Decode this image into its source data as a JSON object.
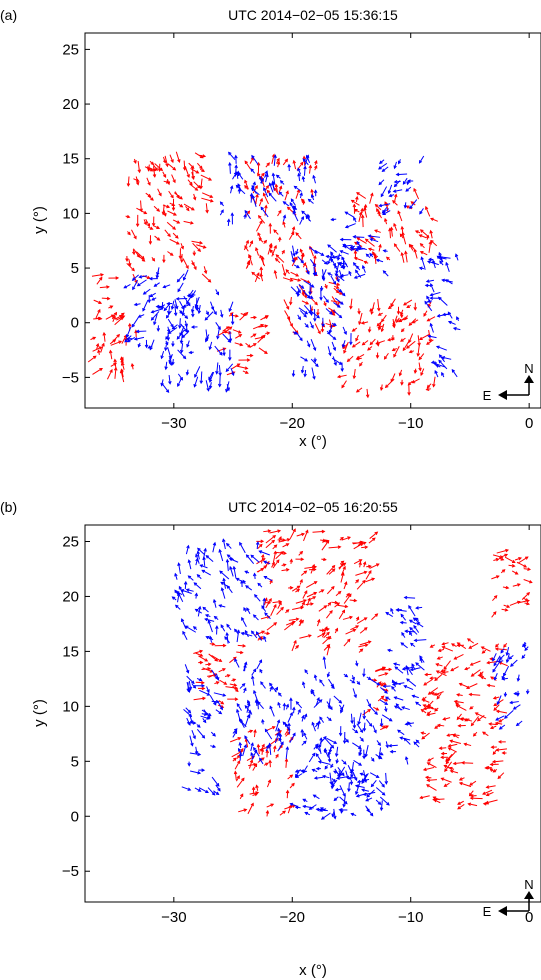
{
  "colors": {
    "red_series": "#ff0000",
    "blue_series": "#0000ff",
    "axis": "#000000"
  },
  "chart_data": [
    {
      "type": "scatter",
      "panel_label": "(a)",
      "title": "UTC 2014−02−05 15:36:15",
      "xlabel": "x (°)",
      "ylabel": "y (°)",
      "xlim": [
        -37.5,
        1
      ],
      "ylim": [
        -7.8,
        26.5
      ],
      "xticks": [
        -30,
        -20,
        -10,
        0
      ],
      "yticks": [
        -5,
        0,
        5,
        10,
        15,
        20,
        25
      ],
      "compass": {
        "north": "N",
        "east": "E"
      },
      "grid": false,
      "legend": "none",
      "series": [
        {
          "color": "red",
          "regions": [
            [
              -36.5,
              -34,
              0,
              4.5
            ],
            [
              -34,
              -27,
              4,
              15.5
            ],
            [
              -24,
              -18,
              4,
              15
            ],
            [
              -21,
              -16,
              -1,
              5
            ],
            [
              -16,
              -8,
              -6.5,
              2
            ],
            [
              -15,
              -8,
              5,
              12
            ],
            [
              -26,
              -22,
              -5,
              1
            ],
            [
              -37,
              -33,
              -5,
              1
            ]
          ]
        },
        {
          "color": "blue",
          "regions": [
            [
              -31,
              -25,
              -6,
              3
            ],
            [
              -26,
              -18,
              9,
              15.5
            ],
            [
              -20,
              -15,
              -5,
              7
            ],
            [
              -17,
              -12,
              4,
              10
            ],
            [
              -34,
              -28,
              -3,
              5
            ],
            [
              -9,
              -6,
              -5,
              6
            ],
            [
              -13,
              -9,
              10,
              15
            ]
          ]
        }
      ]
    },
    {
      "type": "scatter",
      "panel_label": "(b)",
      "title": "UTC 2014−02−05 16:20:55",
      "xlabel": "x (°)",
      "ylabel": "y (°)",
      "xlim": [
        -37.5,
        1
      ],
      "ylim": [
        -7.8,
        26.5
      ],
      "xticks": [
        -30,
        -20,
        -10,
        0
      ],
      "yticks": [
        -5,
        0,
        5,
        10,
        15,
        20,
        25
      ],
      "compass": {
        "north": "N",
        "east": "E"
      },
      "grid": false,
      "legend": "none",
      "series": [
        {
          "color": "red",
          "regions": [
            [
              -23,
              -13,
              15,
              26
            ],
            [
              -14,
              -12,
              8,
              14
            ],
            [
              -9,
              -2,
              0,
              16
            ],
            [
              -25,
              -20,
              0,
              8
            ],
            [
              -3,
              0,
              18,
              25
            ],
            [
              -28,
              -24,
              10,
              16
            ]
          ]
        },
        {
          "color": "blue",
          "regions": [
            [
              -30,
              -22,
              16,
              25
            ],
            [
              -25,
              -17,
              5,
              14
            ],
            [
              -17,
              -12,
              0,
              14
            ],
            [
              -12,
              -9,
              5,
              20
            ],
            [
              -20,
              -13,
              0,
              5
            ],
            [
              -3,
              0,
              8,
              16
            ],
            [
              -29,
              -26,
              2,
              14
            ]
          ]
        }
      ]
    }
  ]
}
